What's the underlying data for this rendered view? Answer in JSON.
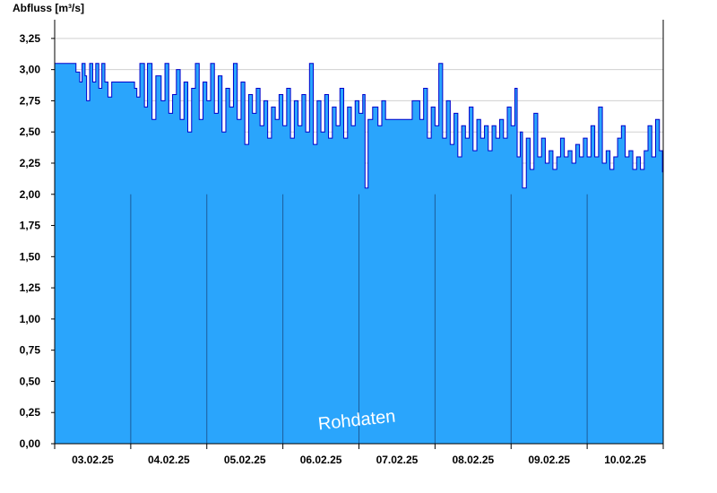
{
  "chart_data": {
    "type": "area",
    "ylabel": "Abfluss [m³/s]",
    "yticks": [
      "0,00",
      "0,25",
      "0,50",
      "0,75",
      "1,00",
      "1,25",
      "1,50",
      "1,75",
      "2,00",
      "2,25",
      "2,50",
      "2,75",
      "3,00",
      "3,25"
    ],
    "ylim": [
      0,
      3.4
    ],
    "xticks": [
      "03.02.25",
      "04.02.25",
      "05.02.25",
      "06.02.25",
      "07.02.25",
      "08.02.25",
      "09.02.25",
      "10.02.25"
    ],
    "day_range": [
      0,
      8
    ],
    "grid": true,
    "watermark": "Rohdaten",
    "colors": {
      "fill": "#2aa5fc",
      "line": "#0000cc",
      "grid": "#d0d0d0",
      "day_line": "#1c5c9a"
    },
    "series": [
      {
        "points": [
          [
            0.0,
            3.05
          ],
          [
            0.27,
            3.05
          ],
          [
            0.28,
            2.98
          ],
          [
            0.33,
            2.9
          ],
          [
            0.36,
            3.05
          ],
          [
            0.4,
            2.95
          ],
          [
            0.42,
            2.75
          ],
          [
            0.46,
            3.05
          ],
          [
            0.5,
            2.9
          ],
          [
            0.54,
            3.05
          ],
          [
            0.58,
            2.85
          ],
          [
            0.62,
            3.05
          ],
          [
            0.66,
            2.9
          ],
          [
            0.7,
            2.78
          ],
          [
            0.75,
            2.9
          ],
          [
            1.0,
            2.9
          ],
          [
            1.05,
            2.85
          ],
          [
            1.08,
            2.78
          ],
          [
            1.12,
            3.05
          ],
          [
            1.18,
            2.7
          ],
          [
            1.22,
            3.05
          ],
          [
            1.28,
            2.6
          ],
          [
            1.33,
            2.95
          ],
          [
            1.4,
            2.75
          ],
          [
            1.45,
            3.05
          ],
          [
            1.5,
            2.65
          ],
          [
            1.55,
            2.8
          ],
          [
            1.6,
            3.0
          ],
          [
            1.65,
            2.6
          ],
          [
            1.7,
            2.9
          ],
          [
            1.75,
            2.5
          ],
          [
            1.8,
            2.85
          ],
          [
            1.85,
            3.05
          ],
          [
            1.9,
            2.6
          ],
          [
            1.95,
            2.9
          ],
          [
            2.0,
            2.75
          ],
          [
            2.05,
            3.05
          ],
          [
            2.1,
            2.65
          ],
          [
            2.15,
            2.95
          ],
          [
            2.2,
            2.5
          ],
          [
            2.25,
            2.85
          ],
          [
            2.3,
            2.7
          ],
          [
            2.35,
            3.05
          ],
          [
            2.4,
            2.6
          ],
          [
            2.45,
            2.9
          ],
          [
            2.5,
            2.4
          ],
          [
            2.55,
            2.8
          ],
          [
            2.6,
            2.65
          ],
          [
            2.65,
            2.85
          ],
          [
            2.7,
            2.55
          ],
          [
            2.75,
            2.75
          ],
          [
            2.8,
            2.45
          ],
          [
            2.85,
            2.7
          ],
          [
            2.9,
            2.6
          ],
          [
            2.95,
            2.8
          ],
          [
            3.0,
            2.55
          ],
          [
            3.05,
            2.85
          ],
          [
            3.1,
            2.45
          ],
          [
            3.15,
            2.75
          ],
          [
            3.2,
            2.55
          ],
          [
            3.25,
            2.8
          ],
          [
            3.3,
            2.5
          ],
          [
            3.35,
            3.05
          ],
          [
            3.4,
            2.4
          ],
          [
            3.45,
            2.75
          ],
          [
            3.5,
            2.5
          ],
          [
            3.55,
            2.8
          ],
          [
            3.6,
            2.45
          ],
          [
            3.65,
            2.7
          ],
          [
            3.7,
            2.55
          ],
          [
            3.75,
            2.85
          ],
          [
            3.8,
            2.45
          ],
          [
            3.85,
            2.7
          ],
          [
            3.9,
            2.55
          ],
          [
            3.95,
            2.75
          ],
          [
            4.0,
            2.65
          ],
          [
            4.05,
            2.8
          ],
          [
            4.08,
            2.05
          ],
          [
            4.12,
            2.6
          ],
          [
            4.18,
            2.7
          ],
          [
            4.25,
            2.55
          ],
          [
            4.3,
            2.75
          ],
          [
            4.35,
            2.6
          ],
          [
            4.5,
            2.6
          ],
          [
            4.6,
            2.6
          ],
          [
            4.7,
            2.75
          ],
          [
            4.8,
            2.6
          ],
          [
            4.85,
            2.85
          ],
          [
            4.9,
            2.45
          ],
          [
            4.95,
            2.7
          ],
          [
            5.0,
            2.55
          ],
          [
            5.05,
            3.05
          ],
          [
            5.1,
            2.45
          ],
          [
            5.15,
            2.75
          ],
          [
            5.2,
            2.4
          ],
          [
            5.25,
            2.65
          ],
          [
            5.3,
            2.3
          ],
          [
            5.35,
            2.55
          ],
          [
            5.4,
            2.45
          ],
          [
            5.45,
            2.7
          ],
          [
            5.5,
            2.35
          ],
          [
            5.55,
            2.6
          ],
          [
            5.6,
            2.45
          ],
          [
            5.65,
            2.55
          ],
          [
            5.7,
            2.35
          ],
          [
            5.75,
            2.55
          ],
          [
            5.8,
            2.45
          ],
          [
            5.85,
            2.6
          ],
          [
            5.9,
            2.45
          ],
          [
            5.95,
            2.7
          ],
          [
            6.0,
            2.55
          ],
          [
            6.05,
            2.85
          ],
          [
            6.08,
            2.3
          ],
          [
            6.12,
            2.5
          ],
          [
            6.15,
            2.05
          ],
          [
            6.2,
            2.45
          ],
          [
            6.25,
            2.2
          ],
          [
            6.3,
            2.65
          ],
          [
            6.35,
            2.3
          ],
          [
            6.4,
            2.45
          ],
          [
            6.45,
            2.25
          ],
          [
            6.5,
            2.35
          ],
          [
            6.55,
            2.2
          ],
          [
            6.6,
            2.3
          ],
          [
            6.65,
            2.45
          ],
          [
            6.7,
            2.3
          ],
          [
            6.75,
            2.35
          ],
          [
            6.8,
            2.25
          ],
          [
            6.85,
            2.4
          ],
          [
            6.9,
            2.3
          ],
          [
            6.95,
            2.45
          ],
          [
            7.0,
            2.3
          ],
          [
            7.05,
            2.55
          ],
          [
            7.1,
            2.3
          ],
          [
            7.15,
            2.7
          ],
          [
            7.2,
            2.25
          ],
          [
            7.25,
            2.35
          ],
          [
            7.3,
            2.2
          ],
          [
            7.35,
            2.3
          ],
          [
            7.4,
            2.45
          ],
          [
            7.45,
            2.55
          ],
          [
            7.5,
            2.3
          ],
          [
            7.55,
            2.35
          ],
          [
            7.6,
            2.2
          ],
          [
            7.65,
            2.3
          ],
          [
            7.7,
            2.2
          ],
          [
            7.75,
            2.35
          ],
          [
            7.8,
            2.55
          ],
          [
            7.85,
            2.3
          ],
          [
            7.9,
            2.6
          ],
          [
            7.95,
            2.35
          ],
          [
            7.99,
            2.18
          ],
          [
            8.0,
            2.18
          ]
        ]
      }
    ]
  }
}
